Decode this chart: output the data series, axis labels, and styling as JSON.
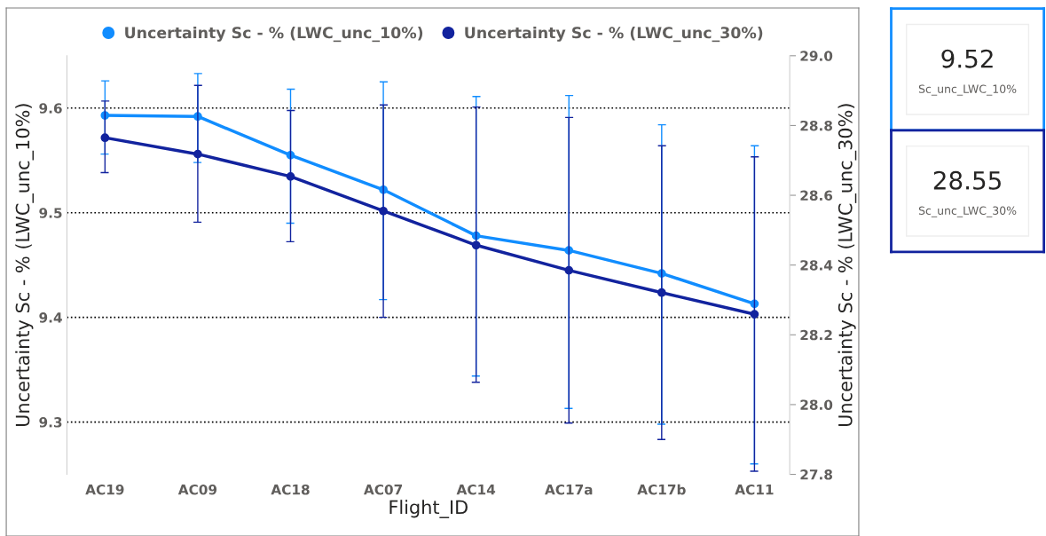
{
  "chart_data": [
    {
      "type": "line",
      "xlabel": "Flight_ID",
      "ylabel": "Uncertainty Sc - % (LWC_unc_10%)",
      "y2label": "Uncertainty Sc - % (LWC_unc_30%)",
      "categories": [
        "AC19",
        "AC09",
        "AC18",
        "AC07",
        "AC14",
        "AC17a",
        "AC17b",
        "AC11"
      ],
      "series": [
        {
          "name": "Uncertainty Sc - % (LWC_unc_10%)",
          "color": "#118dff",
          "values": [
            9.593,
            9.592,
            9.555,
            9.522,
            9.478,
            9.464,
            9.442,
            9.413
          ],
          "errors": [
            [
              9.556,
              9.626
            ],
            [
              9.548,
              9.633
            ],
            [
              9.49,
              9.618
            ],
            [
              9.417,
              9.625
            ],
            [
              9.344,
              9.611
            ],
            [
              9.313,
              9.612
            ],
            [
              9.298,
              9.584
            ],
            [
              9.26,
              9.564
            ]
          ]
        },
        {
          "name": "Uncertainty Sc - % (LWC_unc_30%)",
          "color": "#12239e",
          "axis": "y2",
          "values": [
            28.765,
            28.718,
            28.654,
            28.555,
            28.457,
            28.385,
            28.321,
            28.259
          ],
          "errors": [
            [
              28.665,
              28.87
            ],
            [
              28.523,
              28.915
            ],
            [
              28.467,
              28.843
            ],
            [
              28.25,
              28.859
            ],
            [
              28.064,
              28.853
            ],
            [
              27.947,
              28.823
            ],
            [
              27.9,
              28.742
            ],
            [
              27.809,
              28.71
            ]
          ]
        }
      ],
      "ylim": [
        9.25,
        9.65
      ],
      "yticks": [
        9.3,
        9.4,
        9.5,
        9.6
      ],
      "y2lim": [
        27.8,
        29.0
      ],
      "y2ticks": [
        {
          "value": 27.8,
          "label": "27.8"
        },
        {
          "value": 28.0,
          "label": "28.0"
        },
        28.2,
        28.4,
        28.6,
        28.8,
        {
          "value": 29.0,
          "label": "29.0"
        }
      ],
      "grid": "y",
      "legend": "top",
      "marker": "circle",
      "line_style": "solid"
    },
    {
      "type": "other",
      "title": "9.52",
      "subtitle": "Sc_unc_LWC_10%",
      "color": "#118dff"
    },
    {
      "type": "other",
      "title": "28.55",
      "subtitle": "Sc_unc_LWC_30%",
      "color": "#12239e"
    }
  ]
}
